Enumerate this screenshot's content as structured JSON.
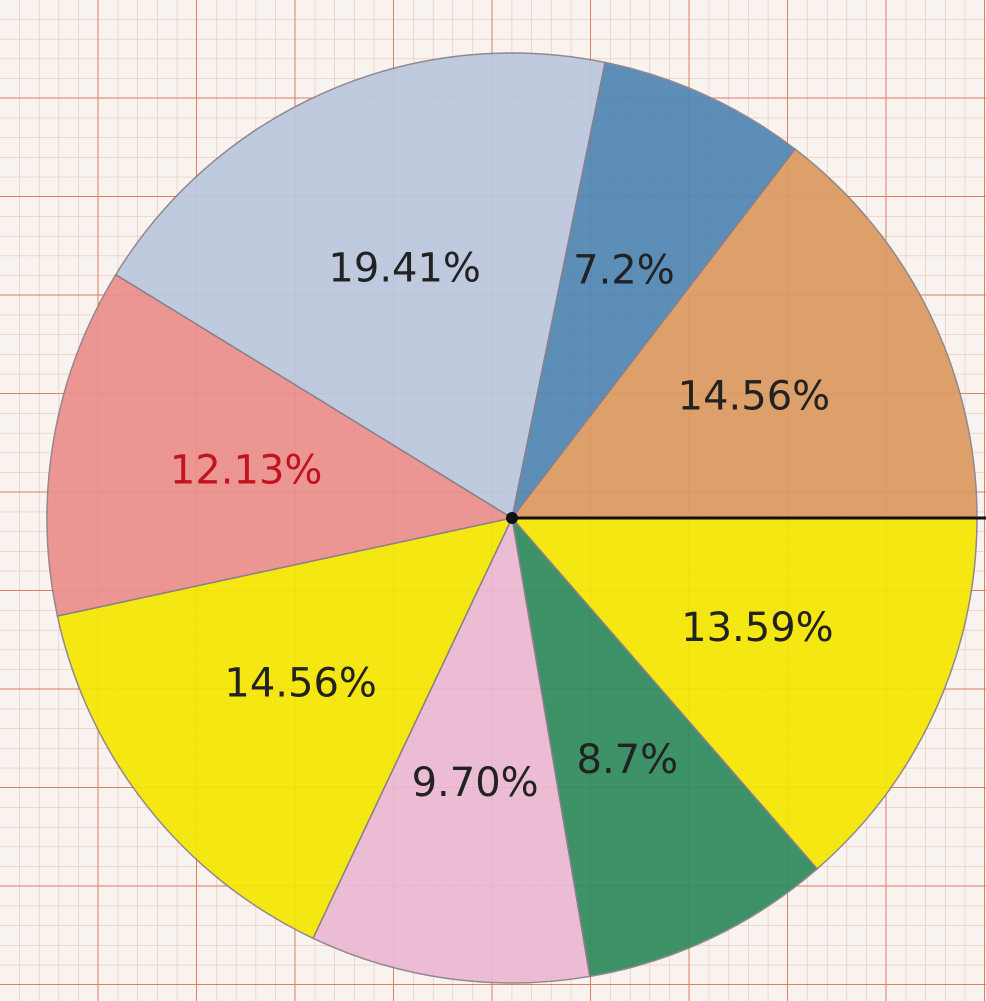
{
  "chart_data": {
    "type": "pie",
    "values": [
      13.59,
      8.7,
      9.7,
      14.56,
      12.13,
      19.41,
      7.2,
      14.56
    ],
    "value_labels": [
      "13.59%",
      "8.7%",
      "9.70%",
      "14.56%",
      "12.13%",
      "19.41%",
      "7.2%",
      "14.56%"
    ],
    "colors": [
      "#f4e600",
      "#2f8a5c",
      "#eab8d2",
      "#f4e600",
      "#eb8f8c",
      "#bcc7dd",
      "#4f86b4",
      "#dc9a60"
    ],
    "label_colors": [
      "#222222",
      "#222222",
      "#222222",
      "#222222",
      "#c0141e",
      "#222222",
      "#222222",
      "#222222"
    ]
  }
}
